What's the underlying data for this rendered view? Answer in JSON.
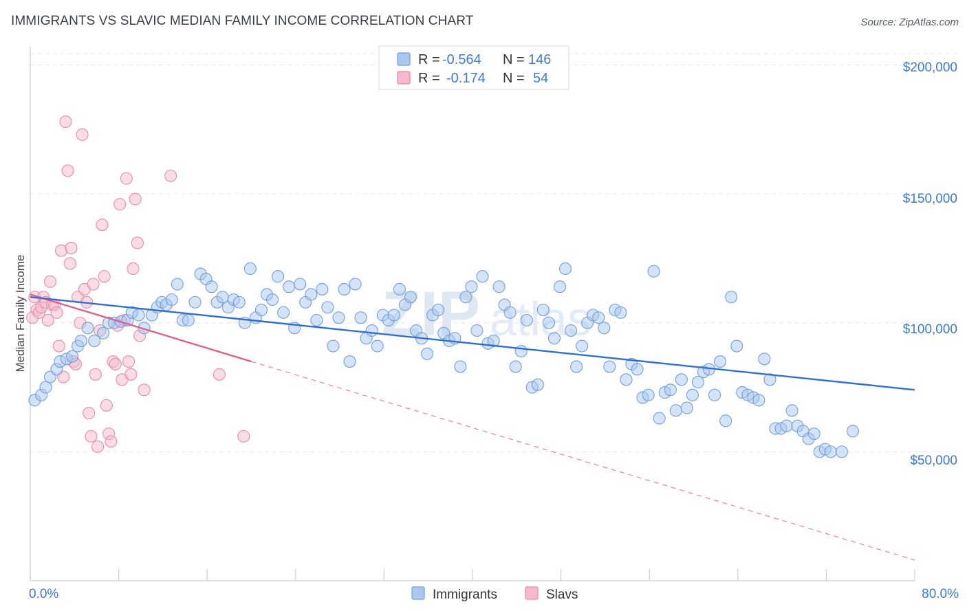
{
  "title": "IMMIGRANTS VS SLAVIC MEDIAN FAMILY INCOME CORRELATION CHART",
  "source": "Source: ZipAtlas.com",
  "watermark": {
    "part1": "ZIP",
    "part2": "atlas"
  },
  "colors": {
    "immigrants_fill": "#a9c7ef",
    "immigrants_stroke": "#6f9fdc",
    "immigrants_line": "#2e6fcf",
    "slavs_fill": "#f6b9cb",
    "slavs_stroke": "#ea8aa8",
    "slavs_line": "#e0608c",
    "accent_text": "#3e7ad1",
    "grid": "#e4e7ec"
  },
  "legend": {
    "rows": [
      {
        "r_label": "R =",
        "r_value": "-0.564",
        "n_label": "N =",
        "n_value": "146"
      },
      {
        "r_label": "R =",
        "r_value": "-0.174",
        "n_label": "N =",
        "n_value": "54"
      }
    ]
  },
  "bottom_legend": [
    "Immigrants",
    "Slavs"
  ],
  "chart_data": {
    "type": "scatter",
    "title": "IMMIGRANTS VS SLAVIC MEDIAN FAMILY INCOME CORRELATION CHART",
    "xlabel": "",
    "ylabel": "Median Family Income",
    "xlim": [
      0,
      80
    ],
    "ylim": [
      0,
      210000
    ],
    "x_tick_labels": [
      "0.0%",
      "80.0%"
    ],
    "y_ticks": [
      50000,
      100000,
      150000,
      200000
    ],
    "y_tick_labels": [
      "$50,000",
      "$100,000",
      "$150,000",
      "$200,000"
    ],
    "grid": true,
    "legend_position": "top-center",
    "series": [
      {
        "name": "Immigrants",
        "r": -0.564,
        "n": 146,
        "trend": {
          "x": [
            0,
            80
          ],
          "y": [
            110000,
            74000
          ]
        },
        "points": [
          [
            0.4,
            70000
          ],
          [
            1.0,
            72000
          ],
          [
            1.4,
            75000
          ],
          [
            1.8,
            79000
          ],
          [
            2.4,
            82000
          ],
          [
            2.7,
            85000
          ],
          [
            3.3,
            86000
          ],
          [
            3.8,
            87000
          ],
          [
            4.3,
            91000
          ],
          [
            4.6,
            93000
          ],
          [
            5.2,
            98000
          ],
          [
            5.8,
            93000
          ],
          [
            6.6,
            96000
          ],
          [
            7.1,
            100000
          ],
          [
            7.6,
            100000
          ],
          [
            8.2,
            100500
          ],
          [
            8.8,
            101000
          ],
          [
            9.2,
            104000
          ],
          [
            9.8,
            103000
          ],
          [
            10.3,
            98000
          ],
          [
            11.0,
            103000
          ],
          [
            11.5,
            106000
          ],
          [
            11.9,
            108000
          ],
          [
            12.3,
            107000
          ],
          [
            12.8,
            109000
          ],
          [
            13.3,
            115000
          ],
          [
            13.8,
            101000
          ],
          [
            14.3,
            101000
          ],
          [
            14.9,
            108000
          ],
          [
            15.4,
            119000
          ],
          [
            15.9,
            117000
          ],
          [
            16.4,
            114000
          ],
          [
            16.9,
            108000
          ],
          [
            17.4,
            110000
          ],
          [
            17.9,
            106000
          ],
          [
            18.4,
            109000
          ],
          [
            18.9,
            108000
          ],
          [
            19.4,
            100000
          ],
          [
            19.9,
            121000
          ],
          [
            20.4,
            102000
          ],
          [
            20.9,
            105000
          ],
          [
            21.4,
            111000
          ],
          [
            21.9,
            109000
          ],
          [
            22.4,
            118000
          ],
          [
            22.9,
            104000
          ],
          [
            23.4,
            114000
          ],
          [
            23.9,
            98000
          ],
          [
            24.4,
            115000
          ],
          [
            24.9,
            108000
          ],
          [
            25.4,
            111000
          ],
          [
            25.9,
            101000
          ],
          [
            26.4,
            113000
          ],
          [
            26.9,
            106000
          ],
          [
            27.4,
            91000
          ],
          [
            27.9,
            102000
          ],
          [
            28.4,
            113000
          ],
          [
            28.9,
            85000
          ],
          [
            29.4,
            115000
          ],
          [
            29.9,
            102000
          ],
          [
            30.4,
            94000
          ],
          [
            30.9,
            97000
          ],
          [
            31.4,
            91000
          ],
          [
            31.9,
            103000
          ],
          [
            32.4,
            101000
          ],
          [
            32.9,
            103000
          ],
          [
            33.4,
            113000
          ],
          [
            33.9,
            107000
          ],
          [
            34.4,
            110000
          ],
          [
            34.9,
            97000
          ],
          [
            35.4,
            94000
          ],
          [
            35.9,
            88000
          ],
          [
            36.4,
            103000
          ],
          [
            36.9,
            105000
          ],
          [
            37.4,
            96000
          ],
          [
            37.9,
            93000
          ],
          [
            38.4,
            94000
          ],
          [
            38.9,
            83000
          ],
          [
            39.4,
            110000
          ],
          [
            39.9,
            114000
          ],
          [
            40.4,
            97000
          ],
          [
            40.9,
            118000
          ],
          [
            41.4,
            92000
          ],
          [
            41.9,
            93000
          ],
          [
            42.4,
            114000
          ],
          [
            42.9,
            107000
          ],
          [
            43.4,
            104000
          ],
          [
            43.9,
            83000
          ],
          [
            44.4,
            89000
          ],
          [
            44.9,
            101000
          ],
          [
            45.4,
            75000
          ],
          [
            45.9,
            76000
          ],
          [
            46.4,
            105000
          ],
          [
            46.9,
            100000
          ],
          [
            47.4,
            94000
          ],
          [
            47.9,
            114000
          ],
          [
            48.4,
            121000
          ],
          [
            48.9,
            97000
          ],
          [
            49.4,
            83000
          ],
          [
            49.9,
            91000
          ],
          [
            50.4,
            100000
          ],
          [
            50.9,
            103000
          ],
          [
            51.4,
            102000
          ],
          [
            51.9,
            98000
          ],
          [
            52.4,
            83000
          ],
          [
            52.9,
            105000
          ],
          [
            53.4,
            104000
          ],
          [
            53.9,
            78000
          ],
          [
            54.4,
            84000
          ],
          [
            54.9,
            82000
          ],
          [
            55.4,
            71000
          ],
          [
            55.9,
            72000
          ],
          [
            56.4,
            120000
          ],
          [
            56.9,
            63000
          ],
          [
            57.4,
            73000
          ],
          [
            57.9,
            74000
          ],
          [
            58.4,
            66000
          ],
          [
            58.9,
            78000
          ],
          [
            59.4,
            67000
          ],
          [
            59.9,
            72000
          ],
          [
            60.4,
            77000
          ],
          [
            60.9,
            81000
          ],
          [
            61.4,
            82000
          ],
          [
            61.9,
            72000
          ],
          [
            62.4,
            85000
          ],
          [
            62.9,
            62000
          ],
          [
            63.4,
            110000
          ],
          [
            63.9,
            91000
          ],
          [
            64.4,
            73000
          ],
          [
            64.9,
            72000
          ],
          [
            65.4,
            71000
          ],
          [
            65.9,
            70000
          ],
          [
            66.4,
            86000
          ],
          [
            66.9,
            78000
          ],
          [
            67.4,
            59000
          ],
          [
            67.9,
            59000
          ],
          [
            68.4,
            60000
          ],
          [
            68.9,
            66000
          ],
          [
            69.4,
            60000
          ],
          [
            69.9,
            58000
          ],
          [
            70.4,
            55000
          ],
          [
            70.9,
            57000
          ],
          [
            71.4,
            50000
          ],
          [
            71.9,
            51000
          ],
          [
            72.4,
            50000
          ],
          [
            73.4,
            50000
          ],
          [
            74.4,
            58000
          ]
        ]
      },
      {
        "name": "Slavs",
        "r": -0.174,
        "n": 54,
        "trend": {
          "x": [
            0,
            20
          ],
          "y": [
            111000,
            85000
          ]
        },
        "trend_extension": {
          "x": [
            20,
            80
          ],
          "y": [
            85000,
            8000
          ]
        },
        "points": [
          [
            0.2,
            102000
          ],
          [
            0.4,
            110000
          ],
          [
            0.6,
            105000
          ],
          [
            0.8,
            104000
          ],
          [
            1.0,
            106000
          ],
          [
            1.2,
            110000
          ],
          [
            1.4,
            108000
          ],
          [
            1.6,
            101000
          ],
          [
            1.8,
            116000
          ],
          [
            2.0,
            107000
          ],
          [
            2.2,
            107000
          ],
          [
            2.4,
            104000
          ],
          [
            2.6,
            91000
          ],
          [
            2.8,
            128000
          ],
          [
            3.0,
            79000
          ],
          [
            3.2,
            178000
          ],
          [
            3.4,
            159000
          ],
          [
            3.6,
            123000
          ],
          [
            3.7,
            129000
          ],
          [
            3.9,
            85000
          ],
          [
            4.1,
            84000
          ],
          [
            4.3,
            110000
          ],
          [
            4.5,
            100000
          ],
          [
            4.7,
            173000
          ],
          [
            4.9,
            113000
          ],
          [
            5.1,
            108000
          ],
          [
            5.3,
            65000
          ],
          [
            5.5,
            56000
          ],
          [
            5.7,
            115000
          ],
          [
            5.9,
            80000
          ],
          [
            6.1,
            52000
          ],
          [
            6.3,
            97000
          ],
          [
            6.5,
            138000
          ],
          [
            6.7,
            118000
          ],
          [
            6.9,
            68000
          ],
          [
            7.1,
            57000
          ],
          [
            7.3,
            54000
          ],
          [
            7.5,
            85000
          ],
          [
            7.7,
            84000
          ],
          [
            7.9,
            99000
          ],
          [
            8.1,
            146000
          ],
          [
            8.3,
            78000
          ],
          [
            8.5,
            101000
          ],
          [
            8.7,
            156000
          ],
          [
            8.9,
            85000
          ],
          [
            9.1,
            80000
          ],
          [
            9.3,
            121000
          ],
          [
            9.5,
            148000
          ],
          [
            9.7,
            131000
          ],
          [
            9.9,
            95000
          ],
          [
            10.3,
            74000
          ],
          [
            12.7,
            157000
          ],
          [
            17.1,
            80000
          ],
          [
            19.3,
            56000
          ]
        ]
      }
    ]
  }
}
